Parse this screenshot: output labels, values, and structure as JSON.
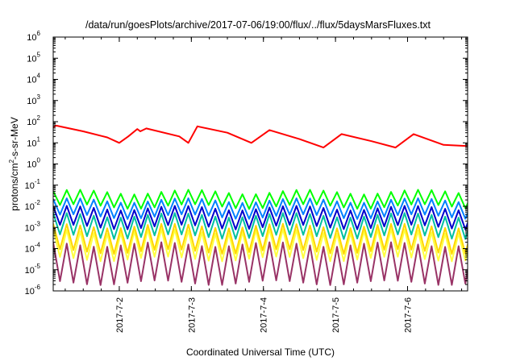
{
  "chart_data": {
    "type": "line",
    "title": "/data/run/goesPlots/archive/2017-07-06/19:00/flux/../flux/5daysMarsFluxes.txt",
    "xlabel": "Coordinated Universal Time (UTC)",
    "ylabel": "protons/cm2-s-sr-MeV",
    "ylabel_parts": {
      "base": "protons/cm",
      "sup": "2",
      "rest": "-s-sr-MeV"
    },
    "yscale": "log",
    "ylim_exp": [
      -6,
      6
    ],
    "y_ticks": [
      {
        "base": "10",
        "exp": "-6"
      },
      {
        "base": "10",
        "exp": "-5"
      },
      {
        "base": "10",
        "exp": "-4"
      },
      {
        "base": "10",
        "exp": "-3"
      },
      {
        "base": "10",
        "exp": "-2"
      },
      {
        "base": "10",
        "exp": "-1"
      },
      {
        "base": "10",
        "exp": "0"
      },
      {
        "base": "10",
        "exp": "1"
      },
      {
        "base": "10",
        "exp": "2"
      },
      {
        "base": "10",
        "exp": "3"
      },
      {
        "base": "10",
        "exp": "4"
      },
      {
        "base": "10",
        "exp": "5"
      },
      {
        "base": "10",
        "exp": "6"
      }
    ],
    "xlim": [
      "2017-07-01T02:00",
      "2017-07-06T20:00"
    ],
    "x_ticks": [
      {
        "label": "2017-7-2",
        "value": "2017-07-02T00:00"
      },
      {
        "label": "2017-7-3",
        "value": "2017-07-03T00:00"
      },
      {
        "label": "2017-7-4",
        "value": "2017-07-04T00:00"
      },
      {
        "label": "2017-7-5",
        "value": "2017-07-05T00:00"
      },
      {
        "label": "2017-7-6",
        "value": "2017-07-06T00:00"
      }
    ],
    "grid": false,
    "series": [
      {
        "color": "#ff0000",
        "points": [
          [
            "2017-07-01T02:00",
            55
          ],
          [
            "2017-07-01T03:00",
            65
          ],
          [
            "2017-07-01T12:00",
            35
          ],
          [
            "2017-07-01T20:00",
            18
          ],
          [
            "2017-07-02T00:00",
            10
          ],
          [
            "2017-07-02T03:00",
            20
          ],
          [
            "2017-07-02T06:00",
            45
          ],
          [
            "2017-07-02T07:00",
            35
          ],
          [
            "2017-07-02T09:00",
            48
          ],
          [
            "2017-07-02T20:00",
            20
          ],
          [
            "2017-07-02T23:00",
            10
          ],
          [
            "2017-07-03T02:00",
            60
          ],
          [
            "2017-07-03T12:00",
            30
          ],
          [
            "2017-07-03T20:00",
            10
          ],
          [
            "2017-07-04T02:00",
            40
          ],
          [
            "2017-07-04T12:00",
            15
          ],
          [
            "2017-07-04T20:00",
            6
          ],
          [
            "2017-07-05T02:00",
            26
          ],
          [
            "2017-07-05T12:00",
            12
          ],
          [
            "2017-07-05T20:00",
            6
          ],
          [
            "2017-07-06T02:00",
            26
          ],
          [
            "2017-07-06T12:00",
            8
          ],
          [
            "2017-07-06T20:00",
            7
          ]
        ]
      },
      {
        "color": "#00ff00",
        "base": 0.022,
        "amp": 2.2,
        "period_h": 4.5,
        "phase": 0.3
      },
      {
        "color": "#0080ff",
        "base": 0.008,
        "amp": 2.4,
        "period_h": 4.5,
        "phase": 0.6
      },
      {
        "color": "#0000cc",
        "base": 0.003,
        "amp": 2.8,
        "period_h": 4.5,
        "phase": 0.9
      },
      {
        "color": "#00c0a0",
        "base": 0.0012,
        "amp": 3.2,
        "period_h": 4.5,
        "phase": 1.2
      },
      {
        "color": "#ffd700",
        "base": 0.0003,
        "amp": 4.0,
        "period_h": 4.5,
        "phase": 1.5
      },
      {
        "color": "#ffff40",
        "base": 0.00015,
        "amp": 4.5,
        "period_h": 4.5,
        "phase": 1.8
      },
      {
        "color": "#993366",
        "base": 2e-05,
        "amp": 8.0,
        "period_h": 4.5,
        "phase": 2.1
      }
    ]
  }
}
